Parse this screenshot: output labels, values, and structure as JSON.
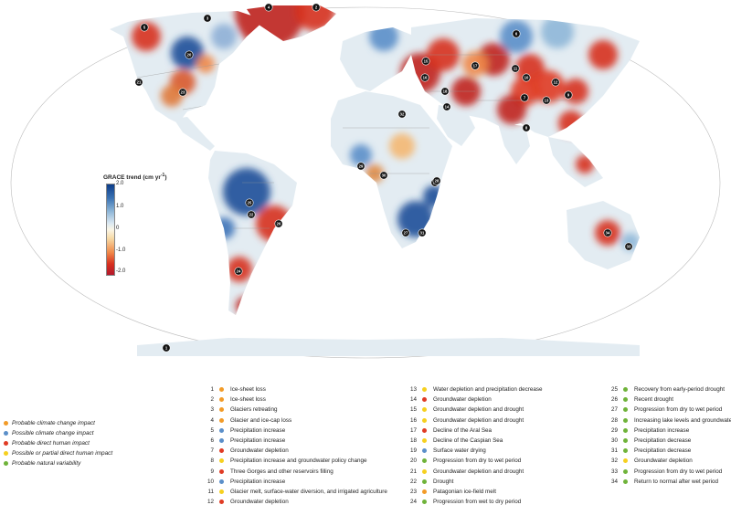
{
  "colors": {
    "ocean": "#ffffff",
    "probable_climate": "#f29b28",
    "possible_climate": "#5b8fc9",
    "probable_direct_human": "#e03b24",
    "possible_partial_human": "#f6d01f",
    "probable_natural": "#6fb33a",
    "marker": "#111111"
  },
  "scale": {
    "title": "GRACE trend (cm yr",
    "title_sup": "-1",
    "title_close": ")",
    "ticks": [
      "2.0",
      "1.0",
      "0",
      "-1.0",
      "-2.0"
    ],
    "tick_values": [
      2.0,
      1.0,
      0,
      -1.0,
      -2.0
    ]
  },
  "impact_legend": [
    {
      "label": "Probable climate change impact",
      "color": "probable_climate"
    },
    {
      "label": "Possible climate change impact",
      "color": "possible_climate"
    },
    {
      "label": "Probable direct human impact",
      "color": "probable_direct_human"
    },
    {
      "label": "Possible or partial direct human impact",
      "color": "possible_partial_human"
    },
    {
      "label": "Probable natural variability",
      "color": "probable_natural"
    }
  ],
  "features": [
    {
      "num": "1",
      "label": "Ice-sheet loss",
      "color": "probable_climate"
    },
    {
      "num": "2",
      "label": "Ice-sheet loss",
      "color": "probable_climate"
    },
    {
      "num": "3",
      "label": "Glaciers retreating",
      "color": "probable_climate"
    },
    {
      "num": "4",
      "label": "Glacier and ice-cap loss",
      "color": "probable_climate"
    },
    {
      "num": "5",
      "label": "Precipitation increase",
      "color": "possible_climate"
    },
    {
      "num": "6",
      "label": "Precipitation increase",
      "color": "possible_climate"
    },
    {
      "num": "7",
      "label": "Groundwater depletion",
      "color": "probable_direct_human"
    },
    {
      "num": "8",
      "label": "Precipitation increase and groundwater policy change",
      "color": "possible_partial_human"
    },
    {
      "num": "9",
      "label": "Three Gorges and other reservoirs filling",
      "color": "probable_direct_human"
    },
    {
      "num": "10",
      "label": "Precipitation increase",
      "color": "possible_climate"
    },
    {
      "num": "11",
      "label": "Glacier melt, surface-water diversion, and irrigated agriculture",
      "color": "possible_partial_human"
    },
    {
      "num": "12",
      "label": "Groundwater depletion",
      "color": "probable_direct_human"
    },
    {
      "num": "13",
      "label": "Water depletion and precipitation decrease",
      "color": "possible_partial_human"
    },
    {
      "num": "14",
      "label": "Groundwater depletion",
      "color": "probable_direct_human"
    },
    {
      "num": "15",
      "label": "Groundwater depletion and drought",
      "color": "possible_partial_human"
    },
    {
      "num": "16",
      "label": "Groundwater depletion and drought",
      "color": "possible_partial_human"
    },
    {
      "num": "17",
      "label": "Decline of the Aral Sea",
      "color": "probable_direct_human"
    },
    {
      "num": "18",
      "label": "Decline of the Caspian Sea",
      "color": "possible_partial_human"
    },
    {
      "num": "19",
      "label": "Surface water drying",
      "color": "possible_climate"
    },
    {
      "num": "20",
      "label": "Progression from dry to wet period",
      "color": "probable_natural"
    },
    {
      "num": "21",
      "label": "Groundwater depletion and drought",
      "color": "possible_partial_human"
    },
    {
      "num": "22",
      "label": "Drought",
      "color": "probable_natural"
    },
    {
      "num": "23",
      "label": "Patagonian ice-field melt",
      "color": "probable_climate"
    },
    {
      "num": "24",
      "label": "Progression from wet to dry period",
      "color": "probable_natural"
    },
    {
      "num": "25",
      "label": "Recovery from early-period drought",
      "color": "probable_natural"
    },
    {
      "num": "26",
      "label": "Recent drought",
      "color": "probable_natural"
    },
    {
      "num": "27",
      "label": "Progression from dry to wet period",
      "color": "probable_natural"
    },
    {
      "num": "28",
      "label": "Increasing lake levels and groundwater",
      "color": "probable_natural"
    },
    {
      "num": "29",
      "label": "Precipitation increase",
      "color": "probable_natural"
    },
    {
      "num": "30",
      "label": "Precipitation decrease",
      "color": "probable_natural"
    },
    {
      "num": "31",
      "label": "Precipitation decrease",
      "color": "probable_natural"
    },
    {
      "num": "32",
      "label": "Groundwater depletion",
      "color": "possible_partial_human"
    },
    {
      "num": "33",
      "label": "Progression from dry to wet period",
      "color": "probable_natural"
    },
    {
      "num": "34",
      "label": "Return to normal after wet period",
      "color": "probable_natural"
    }
  ],
  "map_markers": [
    {
      "num": "1",
      "ix": 0
    },
    {
      "num": "2",
      "ix": 1
    },
    {
      "num": "3",
      "ix": 2
    },
    {
      "num": "4",
      "ix": 3
    },
    {
      "num": "5",
      "ix": 4
    },
    {
      "num": "6",
      "ix": 5
    },
    {
      "num": "7",
      "ix": 6
    },
    {
      "num": "8",
      "ix": 7
    },
    {
      "num": "9",
      "ix": 8
    },
    {
      "num": "10",
      "ix": 9
    },
    {
      "num": "11",
      "ix": 10
    },
    {
      "num": "12",
      "ix": 11
    },
    {
      "num": "13",
      "ix": 12
    },
    {
      "num": "14",
      "ix": 13
    },
    {
      "num": "15",
      "ix": 14
    },
    {
      "num": "16",
      "ix": 15
    },
    {
      "num": "17",
      "ix": 16
    },
    {
      "num": "18",
      "ix": 17
    },
    {
      "num": "19",
      "ix": 18
    },
    {
      "num": "20",
      "ix": 19
    },
    {
      "num": "21",
      "ix": 20
    },
    {
      "num": "22",
      "ix": 21
    },
    {
      "num": "23",
      "ix": 22
    },
    {
      "num": "24",
      "ix": 23
    },
    {
      "num": "25",
      "ix": 24
    },
    {
      "num": "26",
      "ix": 25
    },
    {
      "num": "27",
      "ix": 26
    },
    {
      "num": "28",
      "ix": 27
    },
    {
      "num": "29",
      "ix": 28
    },
    {
      "num": "30",
      "ix": 29
    },
    {
      "num": "31",
      "ix": 30
    },
    {
      "num": "32",
      "ix": 31
    },
    {
      "num": "33",
      "ix": 32
    },
    {
      "num": "34",
      "ix": 33
    }
  ]
}
